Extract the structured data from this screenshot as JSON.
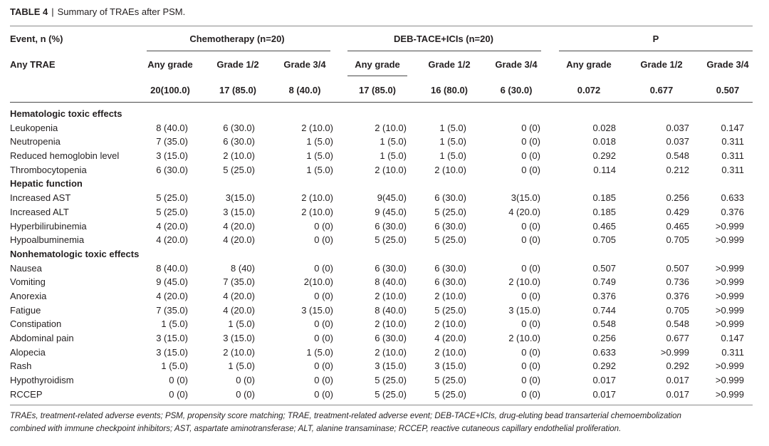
{
  "caption": {
    "label": "TABLE 4",
    "separator": "|",
    "text": "Summary of TRAEs after PSM."
  },
  "header": {
    "event": "Event, n (%)",
    "group1": "Chemotherapy (n=20)",
    "group2": "DEB-TACE+ICIs (n=20)",
    "group3": "P",
    "any_trae": "Any TRAE",
    "sub": [
      "Any grade",
      "Grade 1/2",
      "Grade 3/4",
      "Any grade",
      "Grade 1/2",
      "Grade 3/4",
      "Any grade",
      "Grade 1/2",
      "Grade 3/4"
    ],
    "totals": [
      "20(100.0)",
      "17 (85.0)",
      "8 (40.0)",
      "17 (85.0)",
      "16 (80.0)",
      "6 (30.0)",
      "0.072",
      "0.677",
      "0.507"
    ]
  },
  "table": {
    "rows": [
      {
        "section": "Hematologic toxic effects"
      },
      {
        "label": "Leukopenia",
        "values": [
          "8 (40.0)",
          "6 (30.0)",
          "2 (10.0)",
          "2 (10.0)",
          "1 (5.0)",
          "0 (0)",
          "0.028",
          "0.037",
          "0.147"
        ]
      },
      {
        "label": "Neutropenia",
        "values": [
          "7 (35.0)",
          "6 (30.0)",
          "1 (5.0)",
          "1 (5.0)",
          "1 (5.0)",
          "0 (0)",
          "0.018",
          "0.037",
          "0.311"
        ]
      },
      {
        "label": "Reduced hemoglobin level",
        "values": [
          "3 (15.0)",
          "2 (10.0)",
          "1 (5.0)",
          "1 (5.0)",
          "1 (5.0)",
          "0 (0)",
          "0.292",
          "0.548",
          "0.311"
        ]
      },
      {
        "label": "Thrombocytopenia",
        "values": [
          "6 (30.0)",
          "5 (25.0)",
          "1 (5.0)",
          "2 (10.0)",
          "2 (10.0)",
          "0 (0)",
          "0.114",
          "0.212",
          "0.311"
        ]
      },
      {
        "section": "Hepatic function"
      },
      {
        "label": "Increased AST",
        "values": [
          "5 (25.0)",
          "3(15.0)",
          "2 (10.0)",
          "9(45.0)",
          "6 (30.0)",
          "3(15.0)",
          "0.185",
          "0.256",
          "0.633"
        ]
      },
      {
        "label": "Increased ALT",
        "values": [
          "5 (25.0)",
          "3 (15.0)",
          "2 (10.0)",
          "9 (45.0)",
          "5 (25.0)",
          "4 (20.0)",
          "0.185",
          "0.429",
          "0.376"
        ]
      },
      {
        "label": "Hyperbilirubinemia",
        "values": [
          "4 (20.0)",
          "4 (20.0)",
          "0 (0)",
          "6 (30.0)",
          "6 (30.0)",
          "0 (0)",
          "0.465",
          "0.465",
          ">0.999"
        ]
      },
      {
        "label": "Hypoalbuminemia",
        "values": [
          "4 (20.0)",
          "4 (20.0)",
          "0 (0)",
          "5 (25.0)",
          "5 (25.0)",
          "0 (0)",
          "0.705",
          "0.705",
          ">0.999"
        ]
      },
      {
        "section": "Nonhematologic toxic effects"
      },
      {
        "label": "Nausea",
        "values": [
          "8 (40.0)",
          "8 (40)",
          "0 (0)",
          "6 (30.0)",
          "6 (30.0)",
          "0 (0)",
          "0.507",
          "0.507",
          ">0.999"
        ]
      },
      {
        "label": "Vomiting",
        "values": [
          "9 (45.0)",
          "7 (35.0)",
          "2(10.0)",
          "8 (40.0)",
          "6 (30.0)",
          "2 (10.0)",
          "0.749",
          "0.736",
          ">0.999"
        ]
      },
      {
        "label": "Anorexia",
        "values": [
          "4 (20.0)",
          "4 (20.0)",
          "0 (0)",
          "2 (10.0)",
          "2 (10.0)",
          "0 (0)",
          "0.376",
          "0.376",
          ">0.999"
        ]
      },
      {
        "label": "Fatigue",
        "values": [
          "7 (35.0)",
          "4 (20.0)",
          "3 (15.0)",
          "8 (40.0)",
          "5 (25.0)",
          "3 (15.0)",
          "0.744",
          "0.705",
          ">0.999"
        ]
      },
      {
        "label": "Constipation",
        "values": [
          "1 (5.0)",
          "1 (5.0)",
          "0 (0)",
          "2 (10.0)",
          "2 (10.0)",
          "0 (0)",
          "0.548",
          "0.548",
          ">0.999"
        ]
      },
      {
        "label": "Abdominal pain",
        "values": [
          "3 (15.0)",
          "3 (15.0)",
          "0 (0)",
          "6 (30.0)",
          "4 (20.0)",
          "2 (10.0)",
          "0.256",
          "0.677",
          "0.147"
        ]
      },
      {
        "label": "Alopecia",
        "values": [
          "3 (15.0)",
          "2 (10.0)",
          "1 (5.0)",
          "2 (10.0)",
          "2 (10.0)",
          "0 (0)",
          "0.633",
          ">0.999",
          "0.311"
        ]
      },
      {
        "label": "Rash",
        "values": [
          "1 (5.0)",
          "1 (5.0)",
          "0 (0)",
          "3 (15.0)",
          "3 (15.0)",
          "0 (0)",
          "0.292",
          "0.292",
          ">0.999"
        ]
      },
      {
        "label": "Hypothyroidism",
        "values": [
          "0 (0)",
          "0 (0)",
          "0 (0)",
          "5 (25.0)",
          "5 (25.0)",
          "0 (0)",
          "0.017",
          "0.017",
          ">0.999"
        ]
      },
      {
        "label": "RCCEP",
        "values": [
          "0 (0)",
          "0 (0)",
          "0 (0)",
          "5 (25.0)",
          "5 (25.0)",
          "0 (0)",
          "0.017",
          "0.017",
          ">0.999"
        ]
      }
    ]
  },
  "footnote": {
    "line1": "TRAEs, treatment-related adverse events; PSM, propensity score matching; TRAE, treatment-related adverse event; DEB-TACE+ICIs, drug-eluting bead transarterial chemoembolization",
    "line2": "combined with immune checkpoint inhibitors; AST, aspartate aminotransferase; ALT, alanine transaminase; RCCEP, reactive cutaneous capillary endothelial proliferation."
  }
}
